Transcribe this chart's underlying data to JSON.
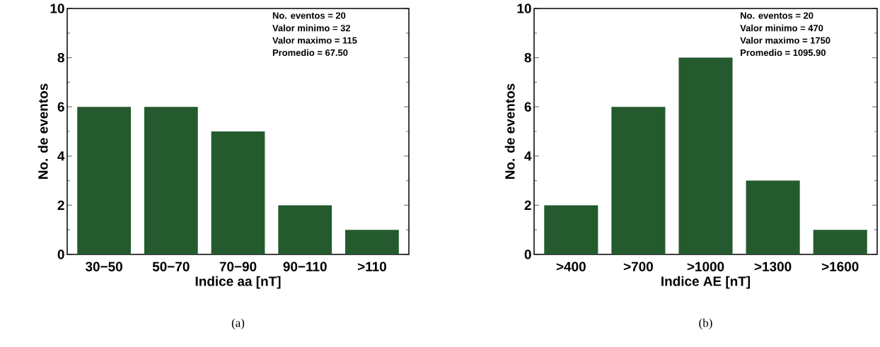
{
  "chart_data": [
    {
      "type": "bar",
      "xlabel": "Indice aa [nT]",
      "ylabel": "No. de eventos",
      "categories": [
        "30−50",
        "50−70",
        "70−90",
        "90−110",
        ">110"
      ],
      "values": [
        6,
        6,
        5,
        2,
        1
      ],
      "color": "#245a2e",
      "ylim": [
        0,
        10
      ],
      "yticks": [
        0,
        2,
        4,
        6,
        8,
        10
      ],
      "annotations": [
        "No. eventos = 20",
        "Valor minimo = 32",
        "Valor maximo = 115",
        "Promedio = 67.50",
        "(a)"
      ]
    },
    {
      "type": "bar",
      "xlabel": "Indice AE [nT]",
      "ylabel": "No. de eventos",
      "categories": [
        ">400",
        ">700",
        ">1000",
        ">1300",
        ">1600"
      ],
      "values": [
        2,
        6,
        8,
        3,
        1
      ],
      "color": "#245a2e",
      "ylim": [
        0,
        10
      ],
      "yticks": [
        0,
        2,
        4,
        6,
        8,
        10
      ],
      "annotations": [
        "No. eventos = 20",
        "Valor minimo = 470",
        "Valor maximo = 1750",
        "Promedio = 1095.90",
        "(b)"
      ]
    }
  ]
}
